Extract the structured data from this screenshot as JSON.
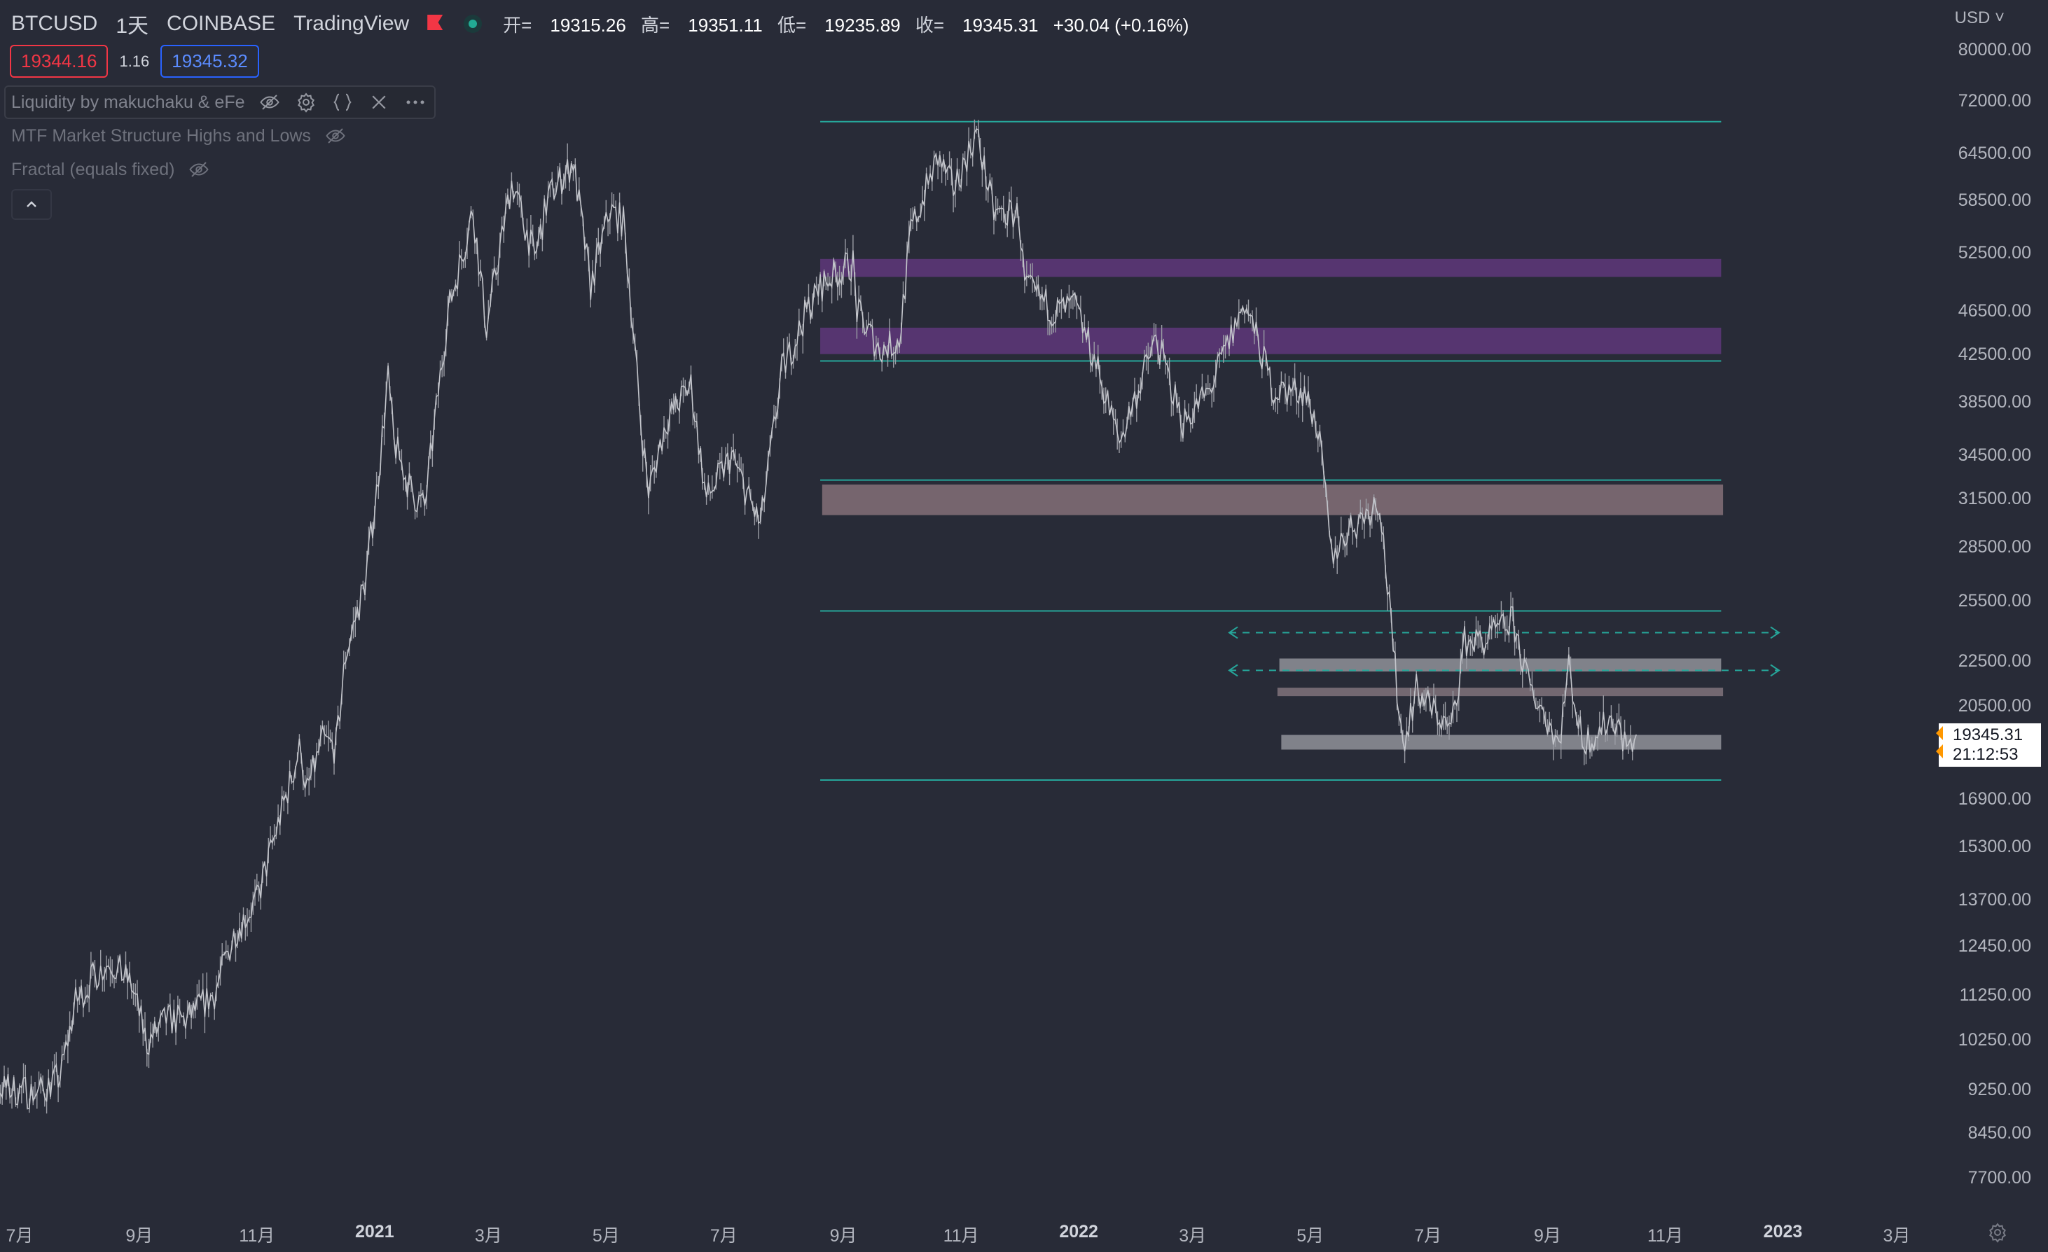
{
  "header": {
    "symbol": "BTCUSD",
    "interval": "1天",
    "exchange": "COINBASE",
    "source": "TradingView",
    "ohlc": {
      "open_label": "开=",
      "open": "19315.26",
      "high_label": "高=",
      "high": "19351.11",
      "low_label": "低=",
      "low": "19235.89",
      "close_label": "收=",
      "close": "19345.31",
      "change": "+30.04 (+0.16%)"
    }
  },
  "quote": {
    "sell": "19344.16",
    "spread": "1.16",
    "buy": "19345.32"
  },
  "indicators": [
    {
      "label": "Liquidity by makuchaku & eFe"
    },
    {
      "label": "MTF Market Structure Highs and Lows"
    },
    {
      "label": "Fractal (equals fixed)"
    }
  ],
  "price_axis": {
    "currency": "USD",
    "ticks": [
      "80000.00",
      "72000.00",
      "64500.00",
      "58500.00",
      "52500.00",
      "46500.00",
      "42500.00",
      "38500.00",
      "34500.00",
      "31500.00",
      "28500.00",
      "25500.00",
      "22500.00",
      "20500.00",
      "16900.00",
      "15300.00",
      "13700.00",
      "12450.00",
      "11250.00",
      "10250.00",
      "9250.00",
      "8450.00",
      "7700.00"
    ],
    "last_price": "19345.31",
    "countdown": "21:12:53"
  },
  "time_axis": {
    "ticks": [
      {
        "label": "7月",
        "bold": false
      },
      {
        "label": "9月",
        "bold": false
      },
      {
        "label": "11月",
        "bold": false
      },
      {
        "label": "2021",
        "bold": true
      },
      {
        "label": "3月",
        "bold": false
      },
      {
        "label": "5月",
        "bold": false
      },
      {
        "label": "7月",
        "bold": false
      },
      {
        "label": "9月",
        "bold": false
      },
      {
        "label": "11月",
        "bold": false
      },
      {
        "label": "2022",
        "bold": true
      },
      {
        "label": "3月",
        "bold": false
      },
      {
        "label": "5月",
        "bold": false
      },
      {
        "label": "7月",
        "bold": false
      },
      {
        "label": "9月",
        "bold": false
      },
      {
        "label": "11月",
        "bold": false
      },
      {
        "label": "2023",
        "bold": true
      },
      {
        "label": "3月",
        "bold": false
      }
    ]
  },
  "chart_data": {
    "type": "line",
    "title": "",
    "scale": "log",
    "ylim": [
      7200,
      82000
    ],
    "series": [
      {
        "points": [
          [
            "2020-06-01",
            9500
          ],
          [
            "2020-06-20",
            9300
          ],
          [
            "2020-07-10",
            9200
          ],
          [
            "2020-07-22",
            9500
          ],
          [
            "2020-07-30",
            11100
          ],
          [
            "2020-08-10",
            11800
          ],
          [
            "2020-08-17",
            12100
          ],
          [
            "2020-08-28",
            11500
          ],
          [
            "2020-09-05",
            10200
          ],
          [
            "2020-09-15",
            10700
          ],
          [
            "2020-09-25",
            10700
          ],
          [
            "2020-10-10",
            11300
          ],
          [
            "2020-10-21",
            12900
          ],
          [
            "2020-11-01",
            13700
          ],
          [
            "2020-11-13",
            16300
          ],
          [
            "2020-11-24",
            19000
          ],
          [
            "2020-11-26",
            17000
          ],
          [
            "2020-12-05",
            19100
          ],
          [
            "2020-12-12",
            18800
          ],
          [
            "2020-12-17",
            22800
          ],
          [
            "2020-12-27",
            26500
          ],
          [
            "2021-01-02",
            32000
          ],
          [
            "2021-01-08",
            40500
          ],
          [
            "2021-01-11",
            35500
          ],
          [
            "2021-01-20",
            32000
          ],
          [
            "2021-01-27",
            31000
          ],
          [
            "2021-02-08",
            46500
          ],
          [
            "2021-02-21",
            57500
          ],
          [
            "2021-02-28",
            45000
          ],
          [
            "2021-03-13",
            61000
          ],
          [
            "2021-03-25",
            52000
          ],
          [
            "2021-04-01",
            59000
          ],
          [
            "2021-04-14",
            63500
          ],
          [
            "2021-04-23",
            49000
          ],
          [
            "2021-05-03",
            57500
          ],
          [
            "2021-05-10",
            56000
          ],
          [
            "2021-05-13",
            49500
          ],
          [
            "2021-05-19",
            37000
          ],
          [
            "2021-05-23",
            32000
          ],
          [
            "2021-06-01",
            37000
          ],
          [
            "2021-06-14",
            40000
          ],
          [
            "2021-06-22",
            31500
          ],
          [
            "2021-07-05",
            34500
          ],
          [
            "2021-07-20",
            29800
          ],
          [
            "2021-07-31",
            41000
          ],
          [
            "2021-08-14",
            47000
          ],
          [
            "2021-08-22",
            49500
          ],
          [
            "2021-09-06",
            51500
          ],
          [
            "2021-09-08",
            46500
          ],
          [
            "2021-09-20",
            43000
          ],
          [
            "2021-09-30",
            43800
          ],
          [
            "2021-10-06",
            55000
          ],
          [
            "2021-10-20",
            64000
          ],
          [
            "2021-10-28",
            60000
          ],
          [
            "2021-11-09",
            67500
          ],
          [
            "2021-11-18",
            57000
          ],
          [
            "2021-12-01",
            57000
          ],
          [
            "2021-12-04",
            49000
          ],
          [
            "2021-12-20",
            46500
          ],
          [
            "2021-12-30",
            47000
          ],
          [
            "2022-01-10",
            41800
          ],
          [
            "2022-01-22",
            35500
          ],
          [
            "2022-02-10",
            44000
          ],
          [
            "2022-02-24",
            37000
          ],
          [
            "2022-03-10",
            39500
          ],
          [
            "2022-03-28",
            47500
          ],
          [
            "2022-04-12",
            39500
          ],
          [
            "2022-04-28",
            39500
          ],
          [
            "2022-05-05",
            36500
          ],
          [
            "2022-05-09",
            31500
          ],
          [
            "2022-05-12",
            28000
          ],
          [
            "2022-05-20",
            29500
          ],
          [
            "2022-06-06",
            31500
          ],
          [
            "2022-06-13",
            23000
          ],
          [
            "2022-06-18",
            19000
          ],
          [
            "2022-06-25",
            21200
          ],
          [
            "2022-07-13",
            19500
          ],
          [
            "2022-07-20",
            23500
          ],
          [
            "2022-07-31",
            23500
          ],
          [
            "2022-08-14",
            24500
          ],
          [
            "2022-08-22",
            21500
          ],
          [
            "2022-09-01",
            20000
          ],
          [
            "2022-09-07",
            19000
          ],
          [
            "2022-09-12",
            22300
          ],
          [
            "2022-09-19",
            19000
          ],
          [
            "2022-09-29",
            19600
          ],
          [
            "2022-10-05",
            20100
          ],
          [
            "2022-10-13",
            18800
          ],
          [
            "2022-10-17",
            19345
          ]
        ]
      }
    ],
    "levels": [
      {
        "price": 69000,
        "from": "2021-08-20",
        "to": "2022-11-30",
        "kind": "line",
        "color": "#26a69a"
      },
      {
        "price": 42000,
        "from": "2021-08-20",
        "to": "2022-11-30",
        "kind": "line",
        "color": "#26a69a"
      },
      {
        "price": 32800,
        "from": "2021-08-20",
        "to": "2022-11-30",
        "kind": "line",
        "color": "#26a69a"
      },
      {
        "price": 25000,
        "from": "2021-08-20",
        "to": "2022-11-30",
        "kind": "line",
        "color": "#26a69a"
      },
      {
        "price": 17600,
        "from": "2021-08-20",
        "to": "2022-11-30",
        "kind": "line",
        "color": "#26a69a"
      },
      {
        "price": 23900,
        "from": "2022-03-20",
        "to": "2022-12-30",
        "kind": "dashed",
        "color": "#26a69a"
      },
      {
        "price": 22100,
        "from": "2022-03-20",
        "to": "2022-12-30",
        "kind": "dashed",
        "color": "#26a69a"
      }
    ],
    "zones": [
      {
        "top": 51900,
        "bottom": 50000,
        "from": "2021-08-20",
        "to": "2022-11-30",
        "color": "#5b3677"
      },
      {
        "top": 45000,
        "bottom": 42600,
        "from": "2021-08-20",
        "to": "2022-11-30",
        "color": "#5b3677"
      },
      {
        "top": 32500,
        "bottom": 30500,
        "from": "2021-08-21",
        "to": "2022-12-01",
        "color": "#7e6b74"
      },
      {
        "top": 22650,
        "bottom": 22050,
        "from": "2022-04-15",
        "to": "2022-11-30",
        "color": "#8a8c93"
      },
      {
        "top": 21320,
        "bottom": 20950,
        "from": "2022-04-14",
        "to": "2022-12-01",
        "color": "#7b6f78"
      },
      {
        "top": 19330,
        "bottom": 18750,
        "from": "2022-04-16",
        "to": "2022-11-30",
        "color": "#8a8c93"
      }
    ]
  },
  "colors": {
    "background": "#282b37",
    "candles": "#b4b6be",
    "level": "#26a69a",
    "sell": "#f23645",
    "buy": "#2962ff"
  }
}
